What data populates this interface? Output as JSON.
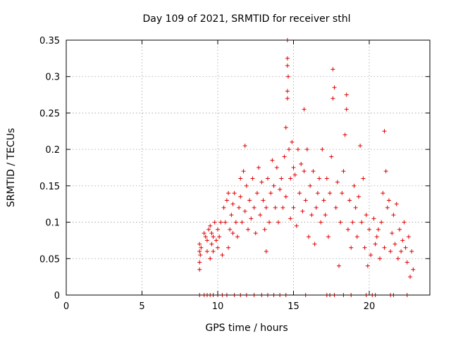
{
  "chart_data": {
    "type": "scatter",
    "title": "Day 109 of 2021, SRMTID for receiver sthl",
    "xlabel": "GPS time / hours",
    "ylabel": "SRMTID / TECUs",
    "xlim": [
      0,
      24
    ],
    "ylim": [
      0,
      0.35
    ],
    "xticks": [
      0,
      5,
      10,
      15,
      20
    ],
    "xtick_labels": [
      "0",
      "5",
      "10",
      "15",
      "20"
    ],
    "yticks": [
      0,
      0.05,
      0.1,
      0.15,
      0.2,
      0.25,
      0.3,
      0.35
    ],
    "ytick_labels": [
      "0",
      "0.05",
      "0.1",
      "0.15",
      "0.2",
      "0.25",
      "0.3",
      "0.35"
    ],
    "grid": true,
    "marker": "+",
    "color": "#e00000",
    "series": [
      {
        "name": "SRMTID",
        "points": [
          [
            8.8,
            0.035
          ],
          [
            8.8,
            0.045
          ],
          [
            8.8,
            0.06
          ],
          [
            8.8,
            0.07
          ],
          [
            8.85,
            0.055
          ],
          [
            8.9,
            0.065
          ],
          [
            9.1,
            0.085
          ],
          [
            9.2,
            0.08
          ],
          [
            9.3,
            0.075
          ],
          [
            9.3,
            0.06
          ],
          [
            9.4,
            0.09
          ],
          [
            9.5,
            0.095
          ],
          [
            9.5,
            0.05
          ],
          [
            9.6,
            0.07
          ],
          [
            9.6,
            0.085
          ],
          [
            9.7,
            0.08
          ],
          [
            9.7,
            0.06
          ],
          [
            9.8,
            0.1
          ],
          [
            9.9,
            0.075
          ],
          [
            10.0,
            0.09
          ],
          [
            10.0,
            0.065
          ],
          [
            10.1,
            0.08
          ],
          [
            10.2,
            0.1
          ],
          [
            10.3,
            0.055
          ],
          [
            10.4,
            0.12
          ],
          [
            10.5,
            0.1
          ],
          [
            10.6,
            0.13
          ],
          [
            10.7,
            0.065
          ],
          [
            10.7,
            0.14
          ],
          [
            10.8,
            0.09
          ],
          [
            10.9,
            0.11
          ],
          [
            11.0,
            0.085
          ],
          [
            11.0,
            0.125
          ],
          [
            11.1,
            0.14
          ],
          [
            11.2,
            0.1
          ],
          [
            11.3,
            0.08
          ],
          [
            11.4,
            0.12
          ],
          [
            11.5,
            0.16
          ],
          [
            11.5,
            0.135
          ],
          [
            11.6,
            0.1
          ],
          [
            11.7,
            0.17
          ],
          [
            11.8,
            0.115
          ],
          [
            11.8,
            0.205
          ],
          [
            11.9,
            0.15
          ],
          [
            12.0,
            0.09
          ],
          [
            12.1,
            0.13
          ],
          [
            12.2,
            0.105
          ],
          [
            12.3,
            0.16
          ],
          [
            12.4,
            0.12
          ],
          [
            12.5,
            0.085
          ],
          [
            12.6,
            0.14
          ],
          [
            12.7,
            0.175
          ],
          [
            12.8,
            0.11
          ],
          [
            12.9,
            0.155
          ],
          [
            13.0,
            0.13
          ],
          [
            13.1,
            0.09
          ],
          [
            13.2,
            0.06
          ],
          [
            13.2,
            0.12
          ],
          [
            13.3,
            0.16
          ],
          [
            13.4,
            0.1
          ],
          [
            13.5,
            0.14
          ],
          [
            13.6,
            0.185
          ],
          [
            13.7,
            0.15
          ],
          [
            13.8,
            0.12
          ],
          [
            13.9,
            0.175
          ],
          [
            14.0,
            0.1
          ],
          [
            14.1,
            0.145
          ],
          [
            14.2,
            0.16
          ],
          [
            14.3,
            0.12
          ],
          [
            14.4,
            0.19
          ],
          [
            14.5,
            0.135
          ],
          [
            14.5,
            0.23
          ],
          [
            14.6,
            0.35
          ],
          [
            14.6,
            0.325
          ],
          [
            14.6,
            0.315
          ],
          [
            14.6,
            0.28
          ],
          [
            14.6,
            0.27
          ],
          [
            14.65,
            0.3
          ],
          [
            14.7,
            0.2
          ],
          [
            14.8,
            0.16
          ],
          [
            14.8,
            0.105
          ],
          [
            14.9,
            0.21
          ],
          [
            15.0,
            0.175
          ],
          [
            15.0,
            0.12
          ],
          [
            15.1,
            0.165
          ],
          [
            15.2,
            0.095
          ],
          [
            15.3,
            0.2
          ],
          [
            15.4,
            0.14
          ],
          [
            15.5,
            0.18
          ],
          [
            15.6,
            0.115
          ],
          [
            15.7,
            0.17
          ],
          [
            15.7,
            0.255
          ],
          [
            15.8,
            0.13
          ],
          [
            15.9,
            0.2
          ],
          [
            16.0,
            0.08
          ],
          [
            16.1,
            0.15
          ],
          [
            16.2,
            0.11
          ],
          [
            16.3,
            0.17
          ],
          [
            16.4,
            0.07
          ],
          [
            16.5,
            0.12
          ],
          [
            16.6,
            0.14
          ],
          [
            16.7,
            0.16
          ],
          [
            16.8,
            0.1
          ],
          [
            16.9,
            0.2
          ],
          [
            17.0,
            0.13
          ],
          [
            17.1,
            0.11
          ],
          [
            17.2,
            0.16
          ],
          [
            17.3,
            0.08
          ],
          [
            17.4,
            0.14
          ],
          [
            17.5,
            0.19
          ],
          [
            17.6,
            0.27
          ],
          [
            17.6,
            0.31
          ],
          [
            17.7,
            0.285
          ],
          [
            17.8,
            0.12
          ],
          [
            17.9,
            0.155
          ],
          [
            18.0,
            0.04
          ],
          [
            18.1,
            0.1
          ],
          [
            18.2,
            0.14
          ],
          [
            18.3,
            0.17
          ],
          [
            18.4,
            0.22
          ],
          [
            18.5,
            0.255
          ],
          [
            18.5,
            0.275
          ],
          [
            18.6,
            0.09
          ],
          [
            18.7,
            0.13
          ],
          [
            18.8,
            0.065
          ],
          [
            18.9,
            0.1
          ],
          [
            19.0,
            0.15
          ],
          [
            19.1,
            0.12
          ],
          [
            19.2,
            0.08
          ],
          [
            19.3,
            0.135
          ],
          [
            19.4,
            0.205
          ],
          [
            19.5,
            0.1
          ],
          [
            19.6,
            0.16
          ],
          [
            19.7,
            0.065
          ],
          [
            19.8,
            0.11
          ],
          [
            19.9,
            0.04
          ],
          [
            20.0,
            0.09
          ],
          [
            20.1,
            0.055
          ],
          [
            20.3,
            0.105
          ],
          [
            20.4,
            0.07
          ],
          [
            20.5,
            0.08
          ],
          [
            20.6,
            0.09
          ],
          [
            20.7,
            0.05
          ],
          [
            20.8,
            0.1
          ],
          [
            20.9,
            0.14
          ],
          [
            21.0,
            0.065
          ],
          [
            21.0,
            0.225
          ],
          [
            21.1,
            0.17
          ],
          [
            21.2,
            0.12
          ],
          [
            21.3,
            0.13
          ],
          [
            21.4,
            0.06
          ],
          [
            21.5,
            0.085
          ],
          [
            21.6,
            0.11
          ],
          [
            21.7,
            0.07
          ],
          [
            21.8,
            0.125
          ],
          [
            21.9,
            0.05
          ],
          [
            22.0,
            0.09
          ],
          [
            22.1,
            0.06
          ],
          [
            22.2,
            0.075
          ],
          [
            22.3,
            0.1
          ],
          [
            22.4,
            0.065
          ],
          [
            22.5,
            0.045
          ],
          [
            22.6,
            0.08
          ],
          [
            22.7,
            0.025
          ],
          [
            22.8,
            0.06
          ],
          [
            22.9,
            0.035
          ]
        ]
      }
    ],
    "zero_points_x": [
      8.8,
      9.1,
      9.3,
      9.5,
      9.7,
      10.0,
      10.3,
      10.6,
      11.1,
      11.5,
      11.9,
      12.4,
      12.9,
      13.3,
      13.7,
      14.1,
      14.5,
      15.8,
      17.2,
      17.4,
      17.7,
      18.3,
      18.8,
      19.8,
      20.2,
      20.4,
      21.4,
      21.6,
      22.5
    ]
  }
}
